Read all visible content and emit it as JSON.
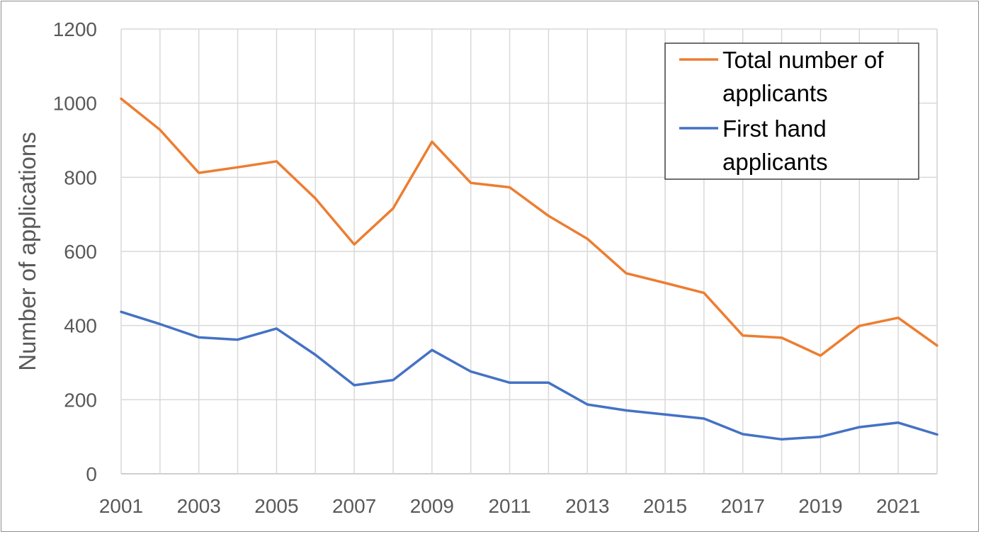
{
  "chart_data": {
    "type": "line",
    "title": "",
    "xlabel": "",
    "ylabel": "Number of applications",
    "x": [
      2001,
      2002,
      2003,
      2004,
      2005,
      2006,
      2007,
      2008,
      2009,
      2010,
      2011,
      2012,
      2013,
      2014,
      2015,
      2016,
      2017,
      2018,
      2019,
      2020,
      2021,
      2022
    ],
    "xticks": [
      "2001",
      "2003",
      "2005",
      "2007",
      "2009",
      "2011",
      "2013",
      "2015",
      "2017",
      "2019",
      "2021"
    ],
    "yticks": [
      "0",
      "200",
      "400",
      "600",
      "800",
      "1000",
      "1200"
    ],
    "xlim": [
      2001,
      2022
    ],
    "ylim": [
      0,
      1200
    ],
    "grid": true,
    "legend_position": "top-right",
    "series": [
      {
        "name": "Total number of applicants",
        "color": "#ED7D31",
        "values": [
          1012,
          928,
          812,
          827,
          843,
          743,
          619,
          716,
          896,
          785,
          773,
          696,
          634,
          541,
          515,
          488,
          373,
          367,
          319,
          399,
          421,
          346
        ]
      },
      {
        "name": "First hand applicants",
        "color": "#4472C4",
        "values": [
          437,
          404,
          368,
          362,
          392,
          321,
          239,
          253,
          334,
          276,
          246,
          246,
          187,
          171,
          160,
          149,
          107,
          93,
          100,
          126,
          138,
          106
        ]
      }
    ],
    "legend_lines": [
      [
        "Total number of",
        "applicants"
      ],
      [
        "First hand",
        "applicants"
      ]
    ]
  }
}
